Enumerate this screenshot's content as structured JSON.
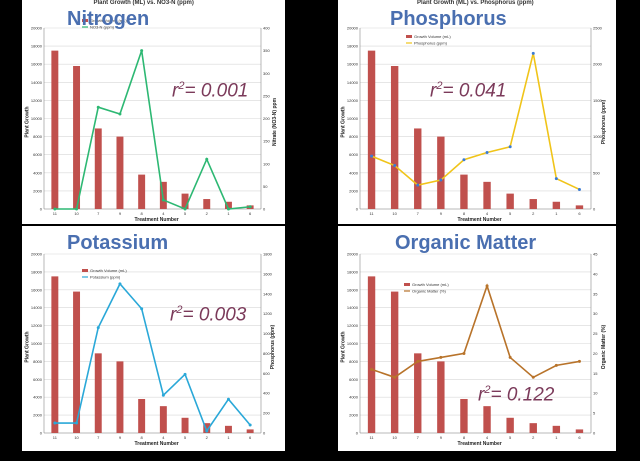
{
  "chart_data": [
    {
      "type": "bar+line",
      "title": "Nitrogen",
      "top_title": "Plant Growth (ML) vs. NO3-N (ppm)",
      "r_squared": "0.001",
      "xlabel": "Treatment Number",
      "ylabel": "Plant Growth",
      "y2label": "Nitrate (NO3-N) ppm",
      "categories": [
        "11",
        "10",
        "7",
        "9",
        "8",
        "4",
        "5",
        "2",
        "1",
        "6"
      ],
      "ylim": [
        0,
        20000
      ],
      "yticks": [
        0,
        2000,
        4000,
        6000,
        8000,
        10000,
        12000,
        14000,
        16000,
        18000,
        20000
      ],
      "y2lim": [
        0,
        400
      ],
      "y2ticks": [
        0,
        50,
        100,
        150,
        200,
        250,
        300,
        350,
        400
      ],
      "legend": [
        "Growth Volume (mL)",
        "NO3-N (ppm)"
      ],
      "legend_position": "top-left",
      "bar_color": "#c0504d",
      "line_color": "#2db873",
      "series": [
        {
          "name": "Growth Volume (mL)",
          "kind": "bar",
          "values": [
            17500,
            15800,
            8900,
            8000,
            3800,
            3000,
            1700,
            1100,
            800,
            400
          ]
        },
        {
          "name": "NO3-N (ppm)",
          "kind": "line",
          "values": [
            0,
            0,
            225,
            210,
            350,
            20,
            0,
            110,
            0,
            5
          ]
        }
      ]
    },
    {
      "type": "bar+line",
      "title": "Phosphorus",
      "top_title": "Plant Growth (ML) vs. Phosphorus (ppm)",
      "r_squared": "0.041",
      "xlabel": "Treatment Number",
      "ylabel": "Plant Growth",
      "y2label": "Phosphorus (ppm)",
      "categories": [
        "11",
        "10",
        "7",
        "9",
        "8",
        "4",
        "5",
        "2",
        "1",
        "6"
      ],
      "ylim": [
        0,
        20000
      ],
      "yticks": [
        0,
        2000,
        4000,
        6000,
        8000,
        10000,
        12000,
        14000,
        16000,
        18000,
        20000
      ],
      "y2lim": [
        0,
        2500
      ],
      "y2ticks": [
        0,
        500,
        1000,
        1500,
        2000,
        2500
      ],
      "legend": [
        "Growth Volume (mL)",
        "Phosphorus (ppm)"
      ],
      "legend_position": "top-left",
      "bar_color": "#c0504d",
      "line_color": "#f0c419",
      "series": [
        {
          "name": "Growth Volume (mL)",
          "kind": "bar",
          "values": [
            17500,
            15800,
            8900,
            8000,
            3800,
            3000,
            1700,
            1100,
            800,
            400
          ]
        },
        {
          "name": "Phosphorus (ppm)",
          "kind": "line",
          "values": [
            730,
            600,
            330,
            400,
            680,
            780,
            860,
            2150,
            420,
            270
          ]
        }
      ]
    },
    {
      "type": "bar+line",
      "title": "Potassium",
      "top_title": "",
      "r_squared": "0.003",
      "xlabel": "Treatment Number",
      "ylabel": "Plant Growth",
      "y2label": "Phosphorus (ppm)",
      "categories": [
        "11",
        "10",
        "7",
        "9",
        "8",
        "4",
        "5",
        "2",
        "1",
        "6"
      ],
      "ylim": [
        0,
        20000
      ],
      "yticks": [
        0,
        2000,
        4000,
        6000,
        8000,
        10000,
        12000,
        14000,
        16000,
        18000,
        20000
      ],
      "y2lim": [
        0,
        1800
      ],
      "y2ticks": [
        0,
        200,
        400,
        600,
        800,
        1000,
        1200,
        1400,
        1600,
        1800
      ],
      "legend": [
        "Growth Volume (mL)",
        "Potassium (ppm)"
      ],
      "legend_position": "top-left",
      "bar_color": "#c0504d",
      "line_color": "#2aa8d8",
      "series": [
        {
          "name": "Growth Volume (mL)",
          "kind": "bar",
          "values": [
            17500,
            15800,
            8900,
            8000,
            3800,
            3000,
            1700,
            1100,
            800,
            400
          ]
        },
        {
          "name": "Potassium (ppm)",
          "kind": "line",
          "values": [
            100,
            100,
            1060,
            1500,
            1250,
            380,
            590,
            20,
            340,
            80
          ]
        }
      ]
    },
    {
      "type": "bar+line",
      "title": "Organic Matter",
      "top_title": "",
      "r_squared": "0.122",
      "xlabel": "Treatment Number",
      "ylabel": "Plant Growth",
      "y2label": "Organic Matter (%)",
      "categories": [
        "11",
        "10",
        "7",
        "9",
        "8",
        "4",
        "5",
        "2",
        "1",
        "6"
      ],
      "ylim": [
        0,
        20000
      ],
      "yticks": [
        0,
        2000,
        4000,
        6000,
        8000,
        10000,
        12000,
        14000,
        16000,
        18000,
        20000
      ],
      "y2lim": [
        0,
        45
      ],
      "y2ticks": [
        0,
        5,
        10,
        15,
        20,
        25,
        30,
        35,
        40,
        45
      ],
      "legend": [
        "Growth Volume (mL)",
        "Organic Matter (%)"
      ],
      "legend_position": "top-left",
      "bar_color": "#c0504d",
      "line_color": "#b8732a",
      "series": [
        {
          "name": "Growth Volume (mL)",
          "kind": "bar",
          "values": [
            17500,
            15800,
            8900,
            8000,
            3800,
            3000,
            1700,
            1100,
            800,
            400
          ]
        },
        {
          "name": "Organic Matter (%)",
          "kind": "line",
          "values": [
            16,
            14,
            18,
            19,
            20,
            37,
            19,
            14,
            17,
            18
          ]
        }
      ]
    }
  ]
}
